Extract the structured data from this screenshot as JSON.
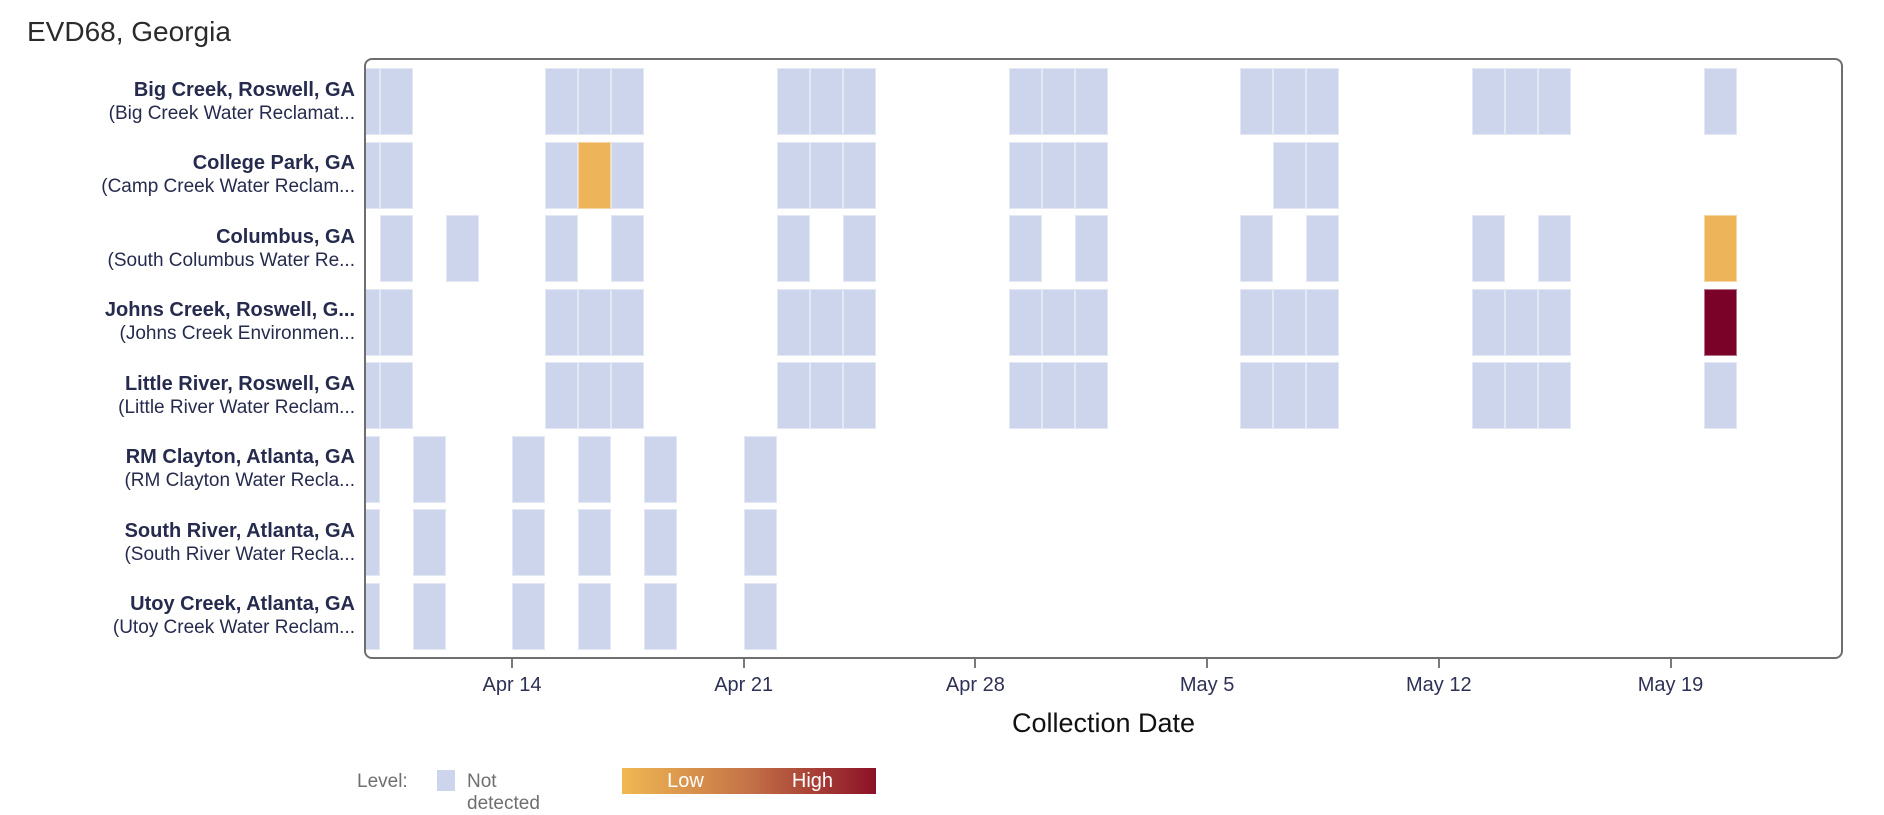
{
  "chart_data": {
    "type": "heatmap",
    "title": "EVD68, Georgia",
    "xlabel": "Collection Date",
    "legend": {
      "title": "Level:",
      "not_detected": "Not detected",
      "low": "Low",
      "high": "High"
    },
    "colors": {
      "not_detected": "#cdd5ec",
      "low": "#eeb45a",
      "high": "#7a0228",
      "gradient": [
        "#f0b852",
        "#c47247",
        "#8c1127"
      ]
    },
    "x_axis": {
      "ticks": [
        {
          "label": "Apr 14",
          "day": 5
        },
        {
          "label": "Apr 21",
          "day": 12
        },
        {
          "label": "Apr 28",
          "day": 19
        },
        {
          "label": "May 5",
          "day": 26
        },
        {
          "label": "May 12",
          "day": 33
        },
        {
          "label": "May 19",
          "day": 40
        }
      ],
      "domain": [
        "Apr 9",
        "May 24"
      ],
      "grid": false
    },
    "levels_key": {
      "nd": "Not detected",
      "low": "Low",
      "high": "High"
    },
    "rows": [
      {
        "city": "Big Creek, Roswell, GA",
        "facility": "(Big Creek Water Reclamat...",
        "samples": [
          {
            "date": "Apr 9",
            "day": 0,
            "level": "nd"
          },
          {
            "date": "Apr 10",
            "day": 1,
            "level": "nd"
          },
          {
            "date": "Apr 15",
            "day": 6,
            "level": "nd"
          },
          {
            "date": "Apr 16",
            "day": 7,
            "level": "nd"
          },
          {
            "date": "Apr 17",
            "day": 8,
            "level": "nd"
          },
          {
            "date": "Apr 22",
            "day": 13,
            "level": "nd"
          },
          {
            "date": "Apr 23",
            "day": 14,
            "level": "nd"
          },
          {
            "date": "Apr 24",
            "day": 15,
            "level": "nd"
          },
          {
            "date": "Apr 29",
            "day": 20,
            "level": "nd"
          },
          {
            "date": "Apr 30",
            "day": 21,
            "level": "nd"
          },
          {
            "date": "May 1",
            "day": 22,
            "level": "nd"
          },
          {
            "date": "May 6",
            "day": 27,
            "level": "nd"
          },
          {
            "date": "May 7",
            "day": 28,
            "level": "nd"
          },
          {
            "date": "May 8",
            "day": 29,
            "level": "nd"
          },
          {
            "date": "May 13",
            "day": 34,
            "level": "nd"
          },
          {
            "date": "May 14",
            "day": 35,
            "level": "nd"
          },
          {
            "date": "May 15",
            "day": 36,
            "level": "nd"
          },
          {
            "date": "May 20",
            "day": 41,
            "level": "nd"
          }
        ]
      },
      {
        "city": "College Park, GA",
        "facility": "(Camp Creek Water Reclam...",
        "samples": [
          {
            "date": "Apr 9",
            "day": 0,
            "level": "nd"
          },
          {
            "date": "Apr 10",
            "day": 1,
            "level": "nd"
          },
          {
            "date": "Apr 15",
            "day": 6,
            "level": "nd"
          },
          {
            "date": "Apr 16",
            "day": 7,
            "level": "low"
          },
          {
            "date": "Apr 17",
            "day": 8,
            "level": "nd"
          },
          {
            "date": "Apr 22",
            "day": 13,
            "level": "nd"
          },
          {
            "date": "Apr 23",
            "day": 14,
            "level": "nd"
          },
          {
            "date": "Apr 24",
            "day": 15,
            "level": "nd"
          },
          {
            "date": "Apr 29",
            "day": 20,
            "level": "nd"
          },
          {
            "date": "Apr 30",
            "day": 21,
            "level": "nd"
          },
          {
            "date": "May 1",
            "day": 22,
            "level": "nd"
          },
          {
            "date": "May 7",
            "day": 28,
            "level": "nd"
          },
          {
            "date": "May 8",
            "day": 29,
            "level": "nd"
          }
        ]
      },
      {
        "city": "Columbus, GA",
        "facility": "(South Columbus Water Re...",
        "samples": [
          {
            "date": "Apr 10",
            "day": 1,
            "level": "nd"
          },
          {
            "date": "Apr 12",
            "day": 3,
            "level": "nd"
          },
          {
            "date": "Apr 15",
            "day": 6,
            "level": "nd"
          },
          {
            "date": "Apr 17",
            "day": 8,
            "level": "nd"
          },
          {
            "date": "Apr 22",
            "day": 13,
            "level": "nd"
          },
          {
            "date": "Apr 24",
            "day": 15,
            "level": "nd"
          },
          {
            "date": "Apr 29",
            "day": 20,
            "level": "nd"
          },
          {
            "date": "May 1",
            "day": 22,
            "level": "nd"
          },
          {
            "date": "May 6",
            "day": 27,
            "level": "nd"
          },
          {
            "date": "May 8",
            "day": 29,
            "level": "nd"
          },
          {
            "date": "May 13",
            "day": 34,
            "level": "nd"
          },
          {
            "date": "May 15",
            "day": 36,
            "level": "nd"
          },
          {
            "date": "May 20",
            "day": 41,
            "level": "low"
          }
        ]
      },
      {
        "city": "Johns Creek, Roswell, G...",
        "facility": "(Johns Creek Environmen...",
        "samples": [
          {
            "date": "Apr 9",
            "day": 0,
            "level": "nd"
          },
          {
            "date": "Apr 10",
            "day": 1,
            "level": "nd"
          },
          {
            "date": "Apr 15",
            "day": 6,
            "level": "nd"
          },
          {
            "date": "Apr 16",
            "day": 7,
            "level": "nd"
          },
          {
            "date": "Apr 17",
            "day": 8,
            "level": "nd"
          },
          {
            "date": "Apr 22",
            "day": 13,
            "level": "nd"
          },
          {
            "date": "Apr 23",
            "day": 14,
            "level": "nd"
          },
          {
            "date": "Apr 24",
            "day": 15,
            "level": "nd"
          },
          {
            "date": "Apr 29",
            "day": 20,
            "level": "nd"
          },
          {
            "date": "Apr 30",
            "day": 21,
            "level": "nd"
          },
          {
            "date": "May 1",
            "day": 22,
            "level": "nd"
          },
          {
            "date": "May 6",
            "day": 27,
            "level": "nd"
          },
          {
            "date": "May 7",
            "day": 28,
            "level": "nd"
          },
          {
            "date": "May 8",
            "day": 29,
            "level": "nd"
          },
          {
            "date": "May 13",
            "day": 34,
            "level": "nd"
          },
          {
            "date": "May 14",
            "day": 35,
            "level": "nd"
          },
          {
            "date": "May 15",
            "day": 36,
            "level": "nd"
          },
          {
            "date": "May 20",
            "day": 41,
            "level": "high"
          }
        ]
      },
      {
        "city": "Little River, Roswell, GA",
        "facility": "(Little River Water Reclam...",
        "samples": [
          {
            "date": "Apr 9",
            "day": 0,
            "level": "nd"
          },
          {
            "date": "Apr 10",
            "day": 1,
            "level": "nd"
          },
          {
            "date": "Apr 15",
            "day": 6,
            "level": "nd"
          },
          {
            "date": "Apr 16",
            "day": 7,
            "level": "nd"
          },
          {
            "date": "Apr 17",
            "day": 8,
            "level": "nd"
          },
          {
            "date": "Apr 22",
            "day": 13,
            "level": "nd"
          },
          {
            "date": "Apr 23",
            "day": 14,
            "level": "nd"
          },
          {
            "date": "Apr 24",
            "day": 15,
            "level": "nd"
          },
          {
            "date": "Apr 29",
            "day": 20,
            "level": "nd"
          },
          {
            "date": "Apr 30",
            "day": 21,
            "level": "nd"
          },
          {
            "date": "May 1",
            "day": 22,
            "level": "nd"
          },
          {
            "date": "May 6",
            "day": 27,
            "level": "nd"
          },
          {
            "date": "May 7",
            "day": 28,
            "level": "nd"
          },
          {
            "date": "May 8",
            "day": 29,
            "level": "nd"
          },
          {
            "date": "May 13",
            "day": 34,
            "level": "nd"
          },
          {
            "date": "May 14",
            "day": 35,
            "level": "nd"
          },
          {
            "date": "May 15",
            "day": 36,
            "level": "nd"
          },
          {
            "date": "May 20",
            "day": 41,
            "level": "nd"
          }
        ]
      },
      {
        "city": "RM Clayton, Atlanta, GA",
        "facility": "(RM Clayton Water Recla...",
        "samples": [
          {
            "date": "Apr 9",
            "day": 0,
            "level": "nd"
          },
          {
            "date": "Apr 11",
            "day": 2,
            "level": "nd"
          },
          {
            "date": "Apr 14",
            "day": 5,
            "level": "nd"
          },
          {
            "date": "Apr 16",
            "day": 7,
            "level": "nd"
          },
          {
            "date": "Apr 18",
            "day": 9,
            "level": "nd"
          },
          {
            "date": "Apr 21",
            "day": 12,
            "level": "nd"
          }
        ]
      },
      {
        "city": "South River, Atlanta, GA",
        "facility": "(South River Water Recla...",
        "samples": [
          {
            "date": "Apr 9",
            "day": 0,
            "level": "nd"
          },
          {
            "date": "Apr 11",
            "day": 2,
            "level": "nd"
          },
          {
            "date": "Apr 14",
            "day": 5,
            "level": "nd"
          },
          {
            "date": "Apr 16",
            "day": 7,
            "level": "nd"
          },
          {
            "date": "Apr 18",
            "day": 9,
            "level": "nd"
          },
          {
            "date": "Apr 21",
            "day": 12,
            "level": "nd"
          }
        ]
      },
      {
        "city": "Utoy Creek, Atlanta, GA",
        "facility": "(Utoy Creek Water Reclam...",
        "samples": [
          {
            "date": "Apr 9",
            "day": 0,
            "level": "nd"
          },
          {
            "date": "Apr 11",
            "day": 2,
            "level": "nd"
          },
          {
            "date": "Apr 14",
            "day": 5,
            "level": "nd"
          },
          {
            "date": "Apr 16",
            "day": 7,
            "level": "nd"
          },
          {
            "date": "Apr 18",
            "day": 9,
            "level": "nd"
          },
          {
            "date": "Apr 21",
            "day": 12,
            "level": "nd"
          }
        ]
      }
    ]
  }
}
